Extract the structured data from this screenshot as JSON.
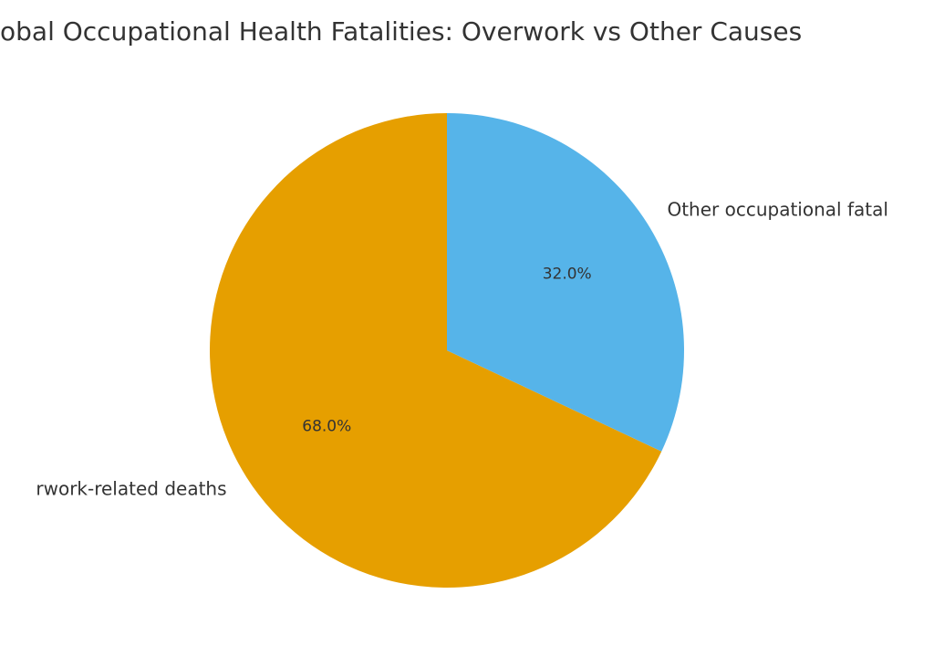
{
  "chart_data": {
    "type": "pie",
    "title": "obal Occupational Health Fatalities: Overwork vs Other Causes",
    "categories": [
      "rwork-related deaths",
      "Other occupational fatal"
    ],
    "values": [
      68,
      32
    ],
    "value_labels": [
      "68.0%",
      "32.0%"
    ],
    "colors": [
      "#E69F00",
      "#56B4E9"
    ]
  }
}
